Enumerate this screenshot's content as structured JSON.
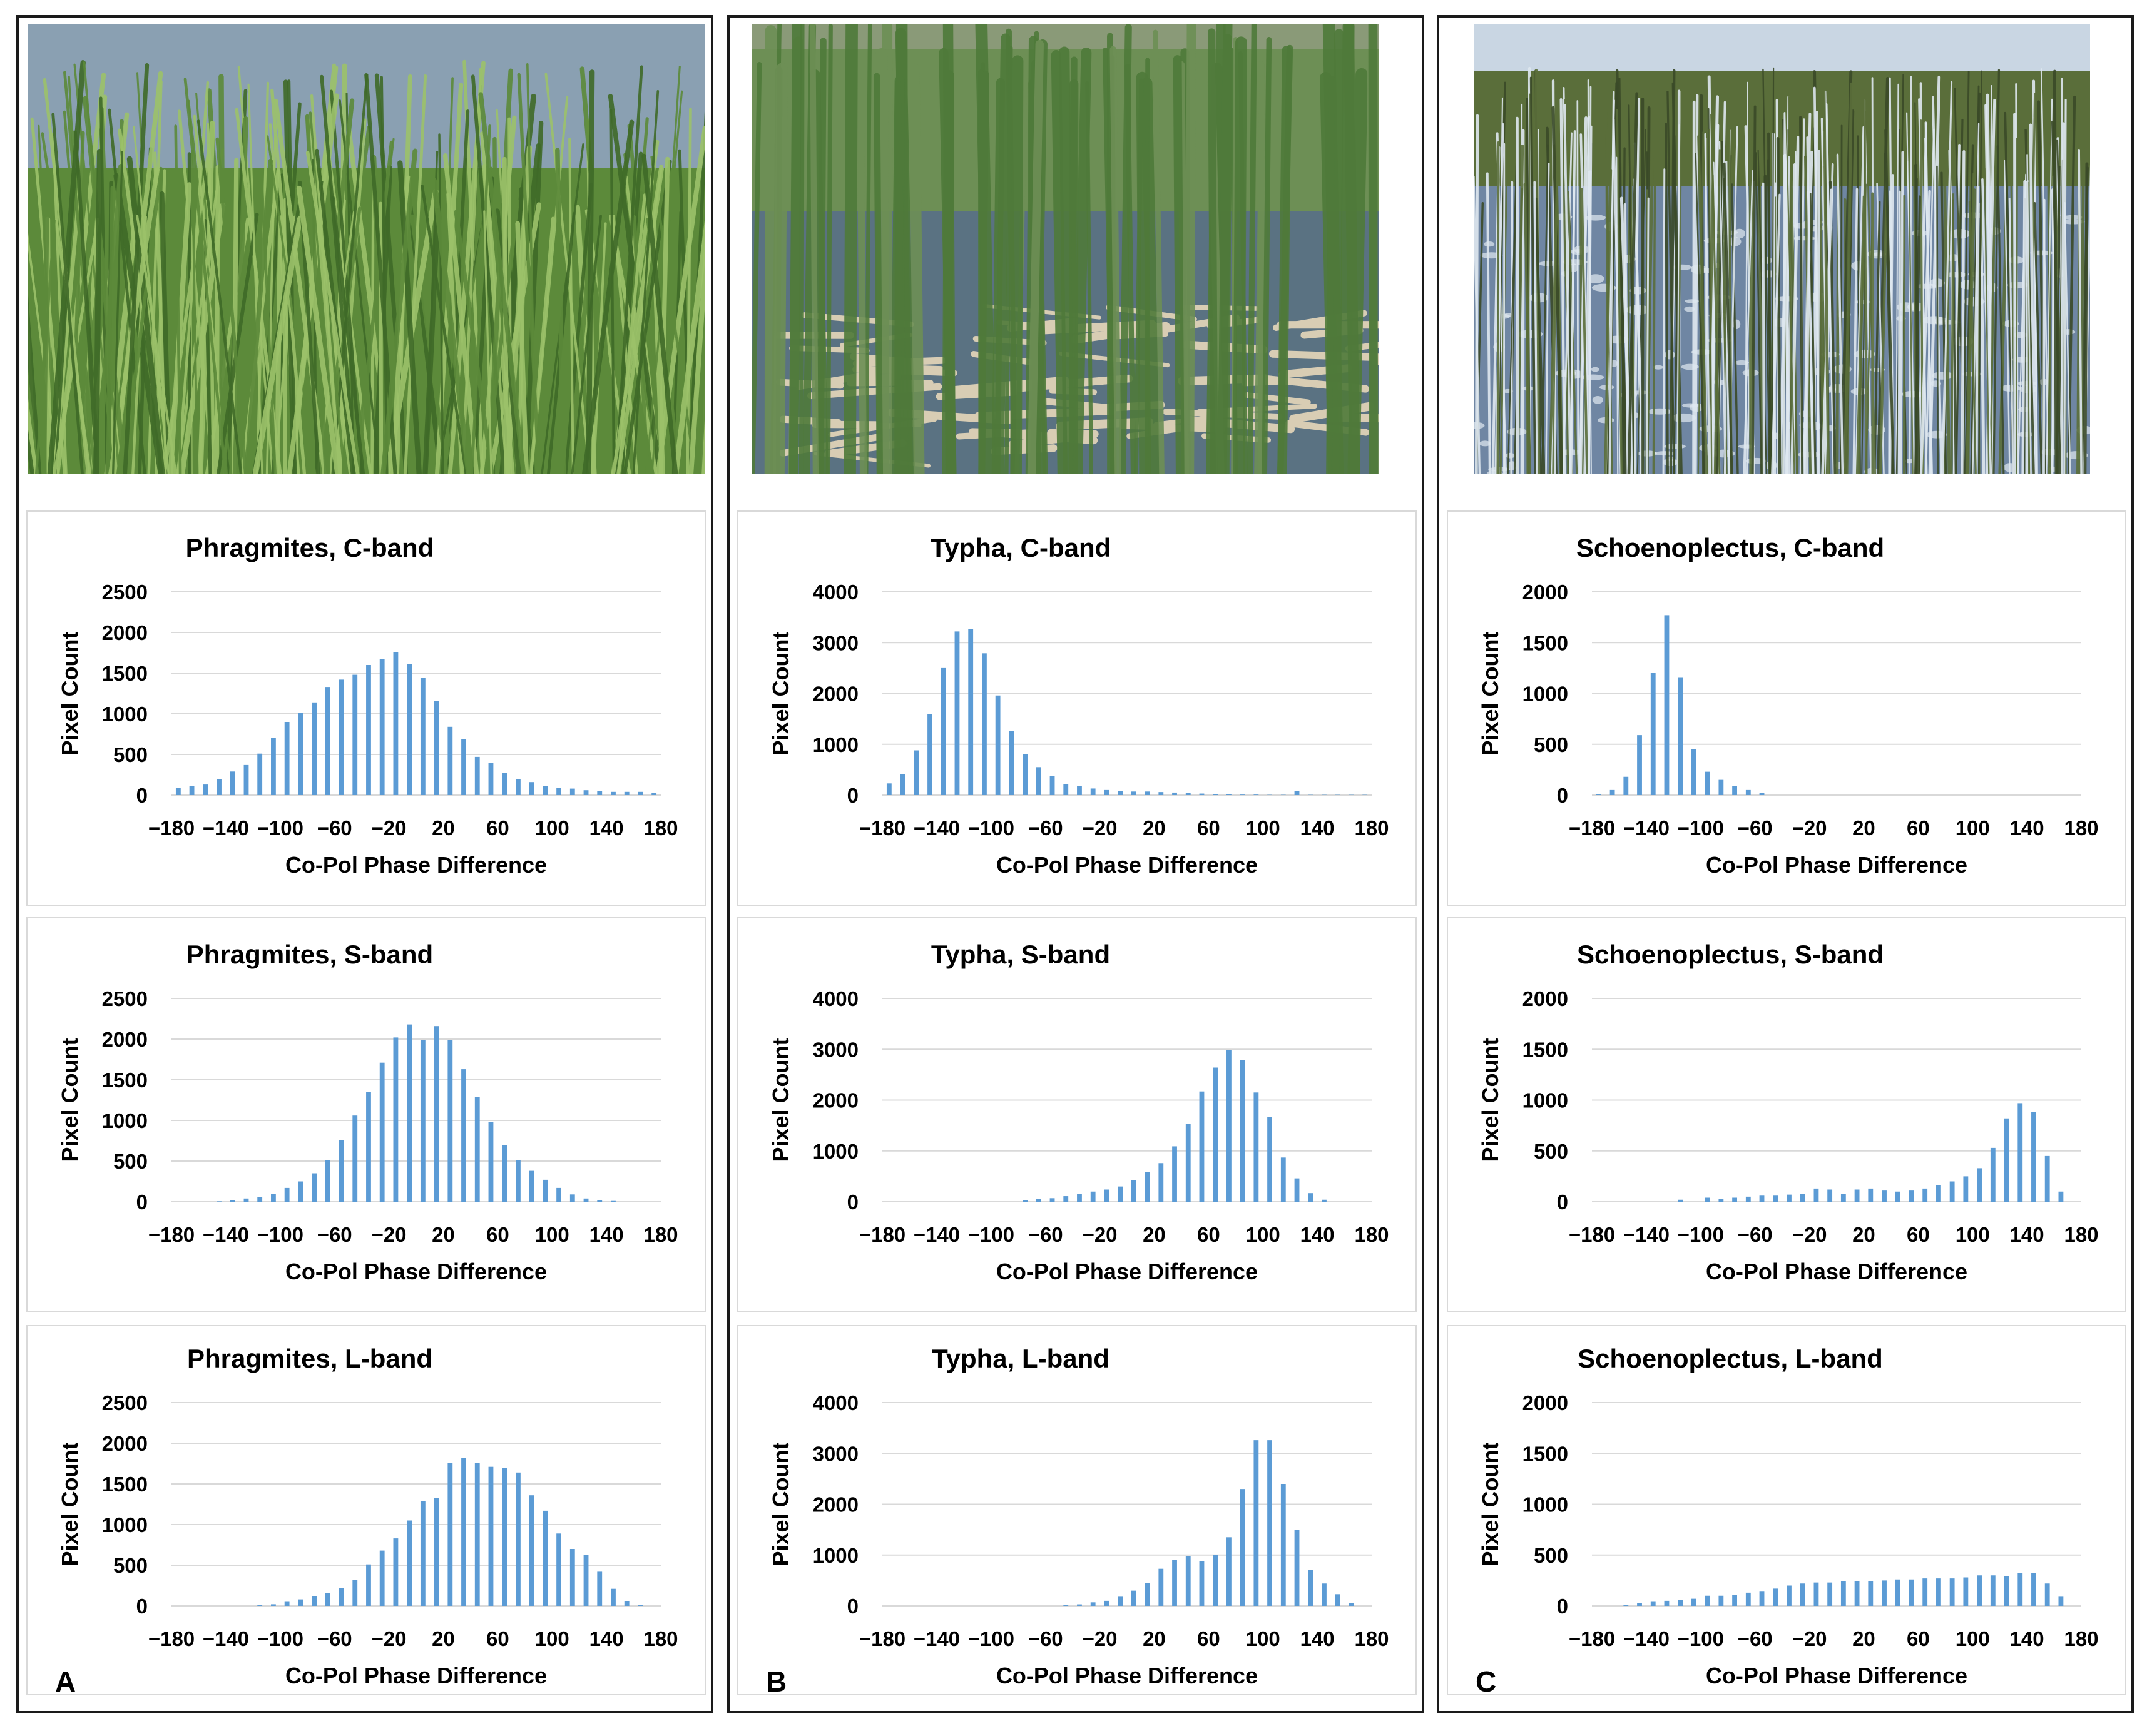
{
  "colors": {
    "bar": "#5b9bd5",
    "grid": "#d9d9d9",
    "frame": "#1a1a1a",
    "text": "#000000"
  },
  "columns": [
    {
      "letter": "A",
      "photo": "phragmites-reed-stand",
      "photo_palette": {
        "sky": "#8aa0b2",
        "fg": "#3f6a28",
        "bg": "#5c8a3a",
        "hi": "#9cc26a",
        "water": null
      }
    },
    {
      "letter": "B",
      "photo": "typha-cattail-marsh",
      "photo_palette": {
        "sky": "#8a9a78",
        "fg": "#4f7a3a",
        "bg": "#6d8f55",
        "hi": "#d8cdb4",
        "water": "#5a7282"
      }
    },
    {
      "letter": "C",
      "photo": "schoenoplectus-bulrush-lake",
      "photo_palette": {
        "sky": "#c9d6e3",
        "fg": "#3a4a28",
        "bg": "#5a6e3a",
        "hi": "#dfe8f0",
        "water": "#6f86a3"
      }
    }
  ],
  "chart_data": [
    {
      "type": "bar",
      "title": "Phragmites, C-band",
      "xlabel": "Co-Pol Phase Difference",
      "ylabel": "Pixel Count",
      "ylim": [
        0,
        2500
      ],
      "yticks": [
        0,
        500,
        1000,
        1500,
        2000,
        2500
      ],
      "xticks": [
        "−180",
        "−140",
        "−100",
        "−60",
        "−20",
        "20",
        "60",
        "100",
        "140",
        "180"
      ],
      "x": [
        -180,
        -170,
        -160,
        -150,
        -140,
        -130,
        -120,
        -110,
        -100,
        -90,
        -80,
        -70,
        -60,
        -50,
        -40,
        -30,
        -20,
        -10,
        0,
        10,
        20,
        30,
        40,
        50,
        60,
        70,
        80,
        90,
        100,
        110,
        120,
        130,
        140,
        150,
        160,
        170
      ],
      "values": [
        90,
        110,
        130,
        200,
        290,
        370,
        510,
        700,
        900,
        1010,
        1140,
        1330,
        1420,
        1480,
        1600,
        1670,
        1760,
        1610,
        1440,
        1160,
        840,
        690,
        470,
        400,
        270,
        200,
        160,
        110,
        90,
        80,
        60,
        50,
        40,
        40,
        40,
        30
      ]
    },
    {
      "type": "bar",
      "title": "Phragmites, S-band",
      "xlabel": "Co-Pol Phase Difference",
      "ylabel": "Pixel Count",
      "ylim": [
        0,
        2500
      ],
      "yticks": [
        0,
        500,
        1000,
        1500,
        2000,
        2500
      ],
      "xticks": [
        "−180",
        "−140",
        "−100",
        "−60",
        "−20",
        "20",
        "60",
        "100",
        "140",
        "180"
      ],
      "x": [
        -180,
        -170,
        -160,
        -150,
        -140,
        -130,
        -120,
        -110,
        -100,
        -90,
        -80,
        -70,
        -60,
        -50,
        -40,
        -30,
        -20,
        -10,
        0,
        10,
        20,
        30,
        40,
        50,
        60,
        70,
        80,
        90,
        100,
        110,
        120,
        130,
        140,
        150,
        160,
        170
      ],
      "values": [
        0,
        0,
        0,
        5,
        20,
        40,
        60,
        100,
        170,
        250,
        350,
        510,
        760,
        1060,
        1350,
        1710,
        2020,
        2180,
        1990,
        2160,
        1990,
        1630,
        1290,
        980,
        700,
        510,
        380,
        270,
        170,
        90,
        40,
        20,
        10,
        0,
        0,
        0
      ]
    },
    {
      "type": "bar",
      "title": "Phragmites, L-band",
      "xlabel": "Co-Pol Phase Difference",
      "ylabel": "Pixel Count",
      "ylim": [
        0,
        2500
      ],
      "yticks": [
        0,
        500,
        1000,
        1500,
        2000,
        2500
      ],
      "xticks": [
        "−180",
        "−140",
        "−100",
        "−60",
        "−20",
        "20",
        "60",
        "100",
        "140",
        "180"
      ],
      "x": [
        -180,
        -170,
        -160,
        -150,
        -140,
        -130,
        -120,
        -110,
        -100,
        -90,
        -80,
        -70,
        -60,
        -50,
        -40,
        -30,
        -20,
        -10,
        0,
        10,
        20,
        30,
        40,
        50,
        60,
        70,
        80,
        90,
        100,
        110,
        120,
        130,
        140,
        150,
        160,
        170
      ],
      "values": [
        0,
        0,
        0,
        0,
        0,
        0,
        10,
        20,
        50,
        80,
        120,
        160,
        220,
        320,
        510,
        680,
        830,
        1050,
        1290,
        1330,
        1760,
        1820,
        1760,
        1710,
        1700,
        1640,
        1360,
        1170,
        890,
        700,
        630,
        420,
        210,
        60,
        10,
        0
      ]
    },
    {
      "type": "bar",
      "title": "Typha, C-band",
      "xlabel": "Co-Pol Phase Difference",
      "ylabel": "Pixel Count",
      "ylim": [
        0,
        4000
      ],
      "yticks": [
        0,
        1000,
        2000,
        3000,
        4000
      ],
      "xticks": [
        "−180",
        "−140",
        "−100",
        "−60",
        "−20",
        "20",
        "60",
        "100",
        "140",
        "180"
      ],
      "x": [
        -180,
        -170,
        -160,
        -150,
        -140,
        -130,
        -120,
        -110,
        -100,
        -90,
        -80,
        -70,
        -60,
        -50,
        -40,
        -30,
        -20,
        -10,
        0,
        10,
        20,
        30,
        40,
        50,
        60,
        70,
        80,
        90,
        100,
        110,
        120,
        130,
        140,
        150,
        160,
        170
      ],
      "values": [
        230,
        410,
        880,
        1590,
        2500,
        3220,
        3270,
        2790,
        1960,
        1260,
        800,
        550,
        380,
        220,
        180,
        130,
        100,
        80,
        70,
        70,
        60,
        50,
        40,
        30,
        20,
        20,
        10,
        10,
        5,
        5,
        80,
        5,
        5,
        5,
        5,
        5
      ]
    },
    {
      "type": "bar",
      "title": "Typha, S-band",
      "xlabel": "Co-Pol Phase Difference",
      "ylabel": "Pixel Count",
      "ylim": [
        0,
        4000
      ],
      "yticks": [
        0,
        1000,
        2000,
        3000,
        4000
      ],
      "xticks": [
        "−180",
        "−140",
        "−100",
        "−60",
        "−20",
        "20",
        "60",
        "100",
        "140",
        "180"
      ],
      "x": [
        -180,
        -170,
        -160,
        -150,
        -140,
        -130,
        -120,
        -110,
        -100,
        -90,
        -80,
        -70,
        -60,
        -50,
        -40,
        -30,
        -20,
        -10,
        0,
        10,
        20,
        30,
        40,
        50,
        60,
        70,
        80,
        90,
        100,
        110,
        120,
        130,
        140,
        150,
        160,
        170
      ],
      "values": [
        0,
        0,
        0,
        0,
        0,
        0,
        0,
        0,
        0,
        0,
        30,
        50,
        70,
        110,
        160,
        200,
        240,
        300,
        420,
        580,
        760,
        1090,
        1530,
        2170,
        2640,
        2990,
        2790,
        2150,
        1670,
        870,
        460,
        170,
        40,
        0,
        0,
        0
      ]
    },
    {
      "type": "bar",
      "title": "Typha, L-band",
      "xlabel": "Co-Pol Phase Difference",
      "ylabel": "Pixel Count",
      "ylim": [
        0,
        4000
      ],
      "yticks": [
        0,
        1000,
        2000,
        3000,
        4000
      ],
      "xticks": [
        "−180",
        "−140",
        "−100",
        "−60",
        "−20",
        "20",
        "60",
        "100",
        "140",
        "180"
      ],
      "x": [
        -180,
        -170,
        -160,
        -150,
        -140,
        -130,
        -120,
        -110,
        -100,
        -90,
        -80,
        -70,
        -60,
        -50,
        -40,
        -30,
        -20,
        -10,
        0,
        10,
        20,
        30,
        40,
        50,
        60,
        70,
        80,
        90,
        100,
        110,
        120,
        130,
        140,
        150,
        160,
        170
      ],
      "values": [
        0,
        0,
        0,
        0,
        0,
        0,
        0,
        0,
        0,
        0,
        0,
        0,
        0,
        20,
        30,
        70,
        100,
        180,
        300,
        450,
        730,
        910,
        980,
        880,
        1000,
        1350,
        2300,
        3260,
        3260,
        2400,
        1500,
        710,
        440,
        230,
        50,
        0
      ]
    },
    {
      "type": "bar",
      "title": "Schoenoplectus, C-band",
      "xlabel": "Co-Pol Phase Difference",
      "ylabel": "Pixel Count",
      "ylim": [
        0,
        2000
      ],
      "yticks": [
        0,
        500,
        1000,
        1500,
        2000
      ],
      "xticks": [
        "−180",
        "−140",
        "−100",
        "−60",
        "−20",
        "20",
        "60",
        "100",
        "140",
        "180"
      ],
      "x": [
        -180,
        -170,
        -160,
        -150,
        -140,
        -130,
        -120,
        -110,
        -100,
        -90,
        -80,
        -70,
        -60,
        -50,
        -40,
        -30,
        -20,
        -10,
        0,
        10,
        20,
        30,
        40,
        50,
        60,
        70,
        80,
        90,
        100,
        110,
        120,
        130,
        140,
        150,
        160,
        170
      ],
      "values": [
        10,
        50,
        180,
        590,
        1200,
        1770,
        1160,
        450,
        230,
        150,
        90,
        50,
        20,
        0,
        0,
        0,
        0,
        0,
        0,
        0,
        0,
        0,
        0,
        0,
        0,
        0,
        0,
        0,
        0,
        0,
        0,
        0,
        0,
        0,
        0,
        0
      ]
    },
    {
      "type": "bar",
      "title": "Schoenoplectus, S-band",
      "xlabel": "Co-Pol Phase Difference",
      "ylabel": "Pixel Count",
      "ylim": [
        0,
        2000
      ],
      "yticks": [
        0,
        500,
        1000,
        1500,
        2000
      ],
      "xticks": [
        "−180",
        "−140",
        "−100",
        "−60",
        "−20",
        "20",
        "60",
        "100",
        "140",
        "180"
      ],
      "x": [
        -180,
        -170,
        -160,
        -150,
        -140,
        -130,
        -120,
        -110,
        -100,
        -90,
        -80,
        -70,
        -60,
        -50,
        -40,
        -30,
        -20,
        -10,
        0,
        10,
        20,
        30,
        40,
        50,
        60,
        70,
        80,
        90,
        100,
        110,
        120,
        130,
        140,
        150,
        160,
        170
      ],
      "values": [
        0,
        0,
        0,
        0,
        0,
        0,
        20,
        0,
        40,
        30,
        40,
        50,
        60,
        60,
        70,
        80,
        130,
        120,
        80,
        120,
        130,
        110,
        100,
        110,
        130,
        160,
        200,
        250,
        330,
        530,
        820,
        970,
        880,
        450,
        100,
        0
      ]
    },
    {
      "type": "bar",
      "title": "Schoenoplectus, L-band",
      "xlabel": "Co-Pol Phase Difference",
      "ylabel": "Pixel Count",
      "ylim": [
        0,
        2000
      ],
      "yticks": [
        0,
        500,
        1000,
        1500,
        2000
      ],
      "xticks": [
        "−180",
        "−140",
        "−100",
        "−60",
        "−20",
        "20",
        "60",
        "100",
        "140",
        "180"
      ],
      "x": [
        -180,
        -170,
        -160,
        -150,
        -140,
        -130,
        -120,
        -110,
        -100,
        -90,
        -80,
        -70,
        -60,
        -50,
        -40,
        -30,
        -20,
        -10,
        0,
        10,
        20,
        30,
        40,
        50,
        60,
        70,
        80,
        90,
        100,
        110,
        120,
        130,
        140,
        150,
        160,
        170
      ],
      "values": [
        0,
        0,
        10,
        30,
        40,
        50,
        60,
        70,
        100,
        100,
        110,
        130,
        140,
        170,
        200,
        220,
        230,
        230,
        240,
        240,
        240,
        250,
        260,
        260,
        270,
        270,
        270,
        280,
        300,
        300,
        290,
        320,
        320,
        220,
        90,
        0
      ]
    }
  ]
}
